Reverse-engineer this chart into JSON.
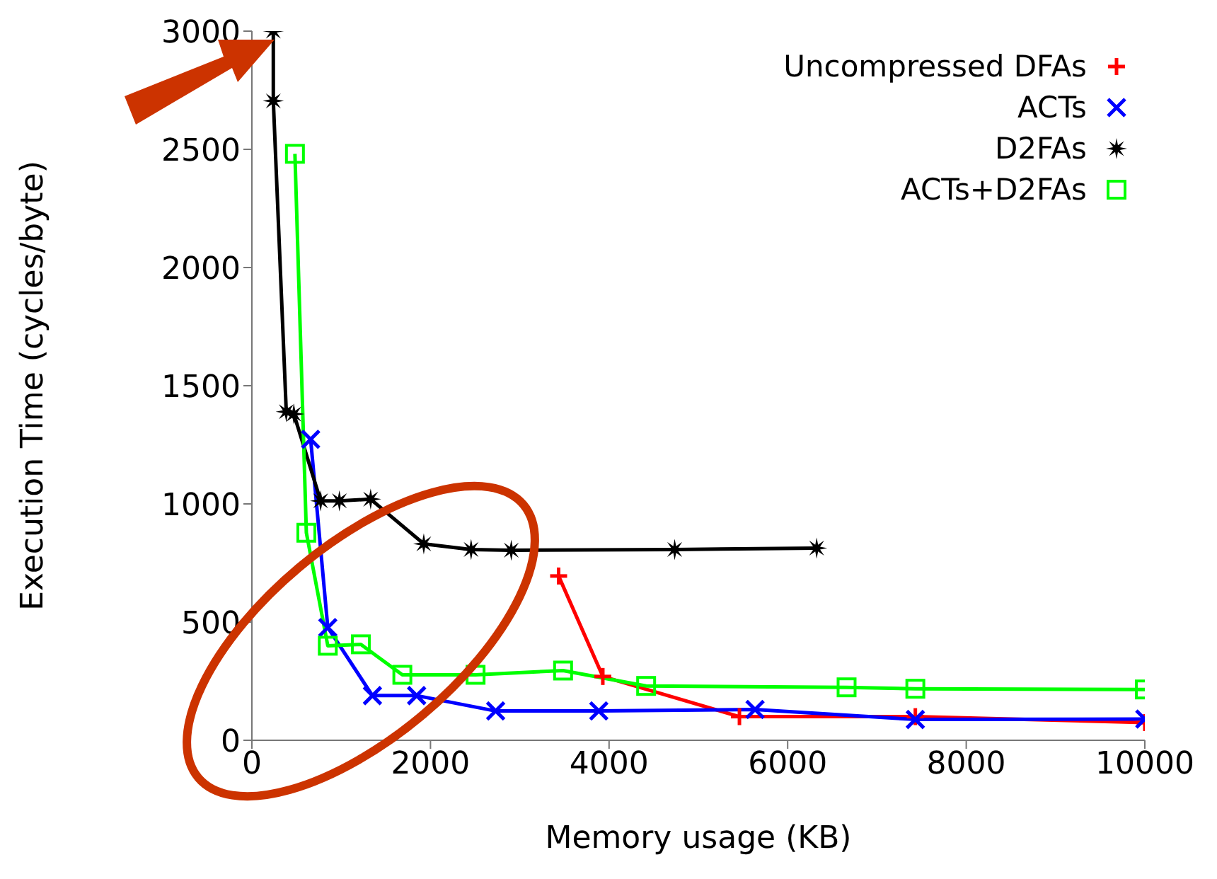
{
  "chart_data": {
    "type": "line",
    "xlabel": "Memory usage (KB)",
    "ylabel": "Execution Time (cycles/byte)",
    "xlim": [
      0,
      10000
    ],
    "xticks": [
      0,
      2000,
      4000,
      6000,
      8000,
      10000
    ],
    "ylim": [
      0,
      3000
    ],
    "yticks": [
      0,
      500,
      1000,
      1500,
      2000,
      2500,
      3000
    ],
    "grid": false,
    "legend": "top right",
    "series": [
      {
        "name": "Uncompressed DFAs",
        "color": "#ff0000",
        "marker": "cross",
        "x": [
          3435,
          3930,
          5460,
          7430,
          10000
        ],
        "values": [
          695,
          270,
          100,
          100,
          75
        ]
      },
      {
        "name": "ACTs",
        "color": "#0000ff",
        "marker": "x",
        "x": [
          658,
          850,
          1350,
          1845,
          2730,
          3885,
          5635,
          7430,
          10000
        ],
        "values": [
          1273,
          477,
          189,
          189,
          124,
          124,
          130,
          88,
          90
        ]
      },
      {
        "name": "D2FAs",
        "color": "#000000",
        "marker": "star",
        "x": [
          240,
          240,
          385,
          470,
          770,
          980,
          1330,
          1925,
          2455,
          2905,
          4735,
          6325
        ],
        "values": [
          3000,
          2705,
          1390,
          1380,
          1013,
          1013,
          1020,
          831,
          807,
          804,
          807,
          813
        ]
      },
      {
        "name": "ACTs+D2FAs",
        "color": "#00ff00",
        "marker": "square",
        "x": [
          482,
          610,
          850,
          1220,
          1685,
          2505,
          3485,
          4415,
          6660,
          7430,
          10000
        ],
        "values": [
          2481,
          878,
          400,
          406,
          277,
          277,
          295,
          230,
          224,
          218,
          215
        ]
      }
    ]
  }
}
